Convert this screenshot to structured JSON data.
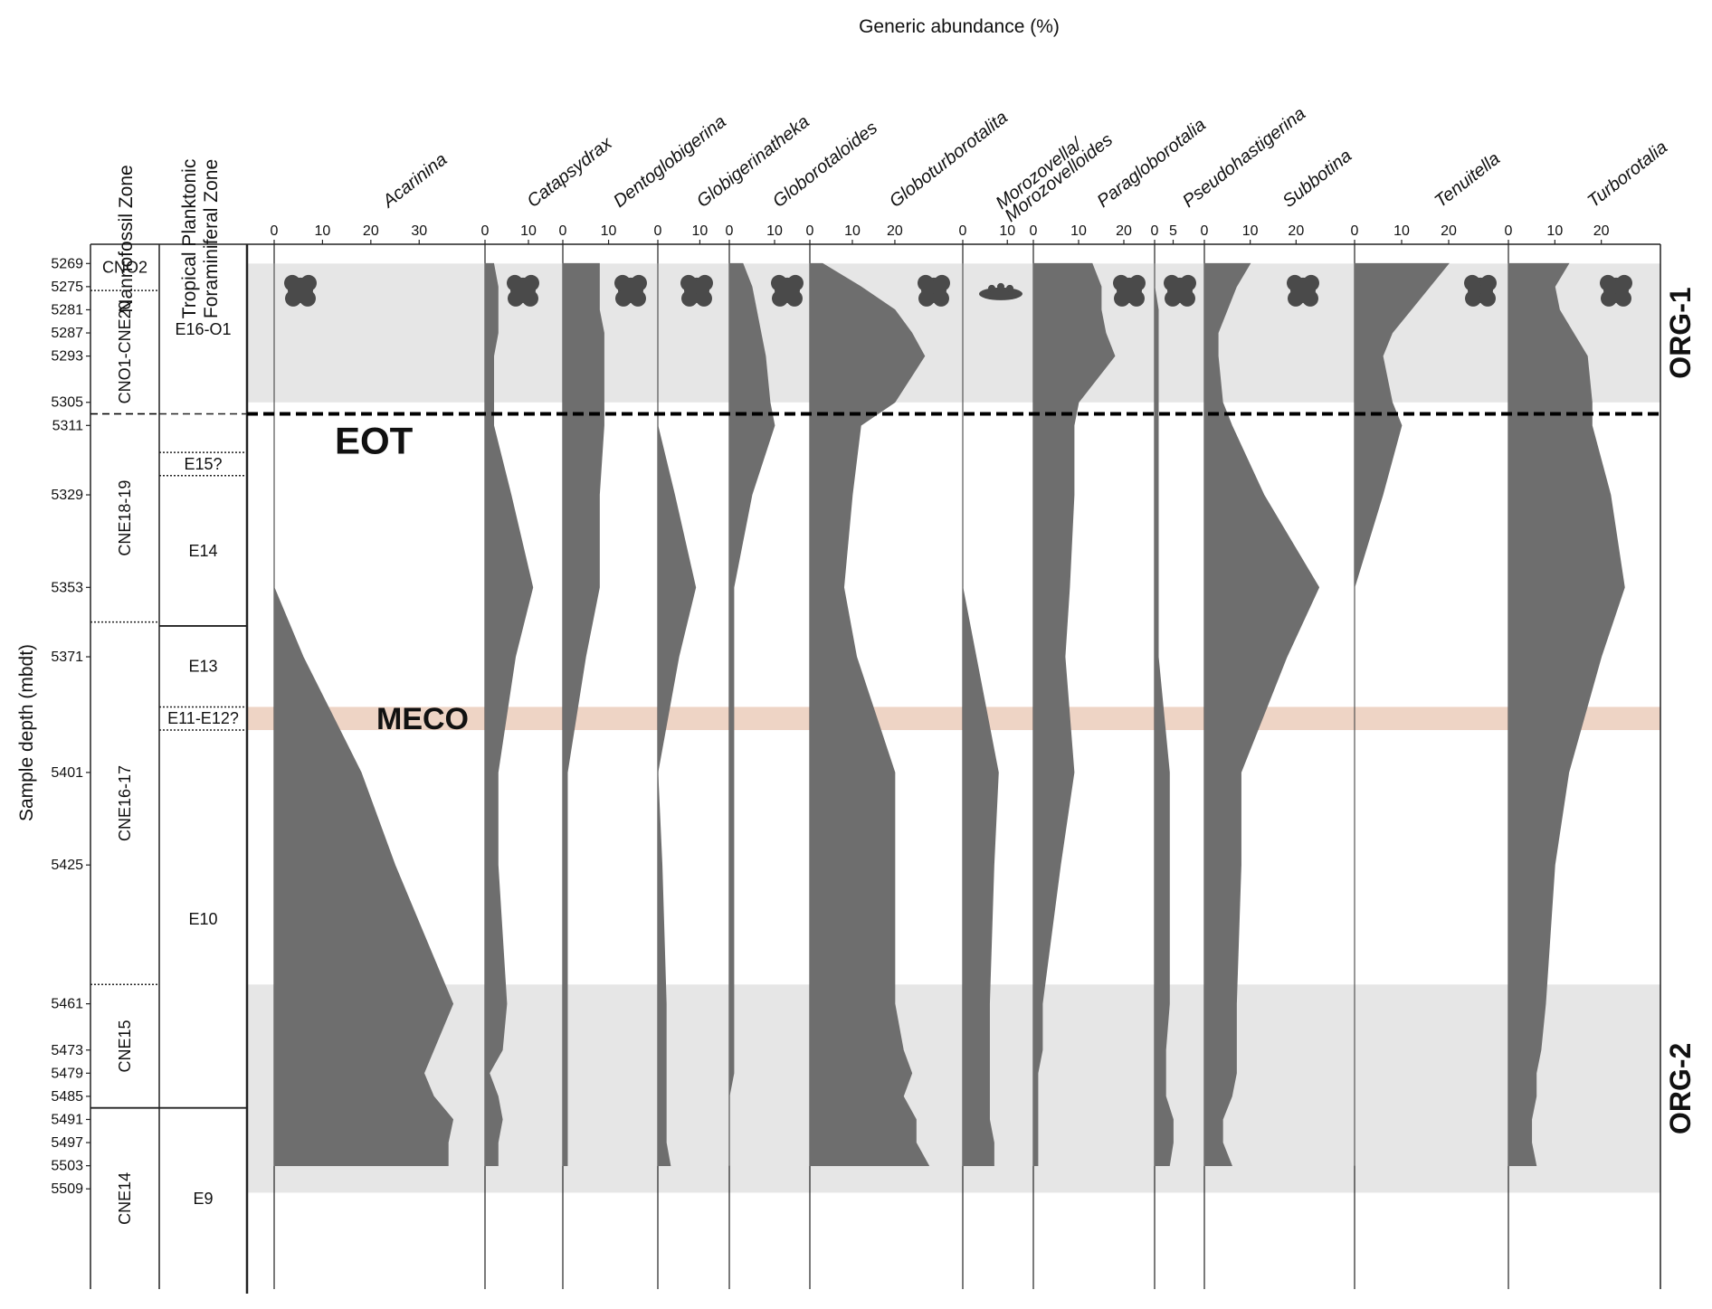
{
  "chart_data": {
    "type": "area",
    "title": "Generic abundance (%)",
    "ylabel": "Sample depth (mbdt)",
    "ylim": [
      5264,
      5535
    ],
    "depth_ticks": [
      5269,
      5275,
      5281,
      5287,
      5293,
      5305,
      5311,
      5329,
      5353,
      5371,
      5401,
      5425,
      5461,
      5473,
      5479,
      5485,
      5491,
      5497,
      5503,
      5509
    ],
    "zone_column_headers": [
      "Nannofossil Zone",
      "Tropical Planktonic Foraminiferal Zone"
    ],
    "nannofossil_zones": [
      {
        "label": "CNO2",
        "top": 5264,
        "bottom": 5276,
        "boundary": "dotted"
      },
      {
        "label": "CNO1-CNE20",
        "top": 5276,
        "bottom": 5308,
        "boundary": "dashed"
      },
      {
        "label": "CNE18-19",
        "top": 5308,
        "bottom": 5362,
        "boundary": "dotted"
      },
      {
        "label": "CNE16-17",
        "top": 5362,
        "bottom": 5456,
        "boundary": "dotted"
      },
      {
        "label": "CNE15",
        "top": 5456,
        "bottom": 5488,
        "boundary": "solid"
      },
      {
        "label": "CNE14",
        "top": 5488,
        "bottom": 5535,
        "boundary": "none"
      }
    ],
    "foram_zones": [
      {
        "label": "E16-O1",
        "top": 5264,
        "bottom": 5308,
        "boundary": "dashed"
      },
      {
        "label": "",
        "top": 5308,
        "bottom": 5318,
        "boundary": "dotted"
      },
      {
        "label": "E15?",
        "top": 5318,
        "bottom": 5324,
        "boundary": "dotted"
      },
      {
        "label": "E14",
        "top": 5324,
        "bottom": 5363,
        "boundary": "solid"
      },
      {
        "label": "E13",
        "top": 5363,
        "bottom": 5384,
        "boundary": "dotted"
      },
      {
        "label": "E11-E12?",
        "top": 5384,
        "bottom": 5390,
        "boundary": "dotted"
      },
      {
        "label": "E10",
        "top": 5390,
        "bottom": 5488,
        "boundary": "solid"
      },
      {
        "label": "E9",
        "top": 5488,
        "bottom": 5535,
        "boundary": "none"
      }
    ],
    "events": [
      {
        "label": "EOT",
        "depth": 5308,
        "style": "dashed-line"
      },
      {
        "label": "MECO",
        "top": 5384,
        "bottom": 5390,
        "color": "#eccfbf"
      }
    ],
    "intervals": [
      {
        "label": "ORG-1",
        "top": 5269,
        "bottom": 5305,
        "color": "#e6e6e6"
      },
      {
        "label": "ORG-2",
        "top": 5456,
        "bottom": 5510,
        "color": "#e6e6e6"
      }
    ],
    "colors": {
      "fill": "#6e6e6e",
      "fossil": "#4a4a4a"
    },
    "sample_depths": [
      5269,
      5275,
      5281,
      5287,
      5293,
      5305,
      5311,
      5329,
      5353,
      5371,
      5401,
      5425,
      5461,
      5473,
      5479,
      5485,
      5491,
      5497,
      5503
    ],
    "series": [
      {
        "name": "Acarinina",
        "ticks": [
          0,
          10,
          20,
          30
        ],
        "xmax": 41,
        "values": [
          0,
          0,
          0,
          0,
          0,
          0,
          0,
          0,
          0,
          6,
          18,
          25,
          37,
          33,
          31,
          33,
          37,
          36,
          36
        ]
      },
      {
        "name": "Catapsydrax",
        "ticks": [
          0,
          10
        ],
        "xmax": 15,
        "values": [
          2,
          3,
          3,
          3,
          2,
          2,
          2,
          6,
          11,
          7,
          3,
          3,
          5,
          4,
          1,
          3,
          4,
          3,
          3
        ]
      },
      {
        "name": "Dentoglobigerina",
        "ticks": [
          0,
          10
        ],
        "xmax": 18,
        "values": [
          8,
          8,
          8,
          9,
          9,
          9,
          9,
          8,
          8,
          5,
          1,
          1,
          1,
          1,
          1,
          1,
          1,
          1,
          1
        ]
      },
      {
        "name": "Globigerinatheka",
        "ticks": [
          0,
          10
        ],
        "xmax": 14,
        "values": [
          0,
          0,
          0,
          0,
          0,
          0,
          0,
          4,
          9,
          5,
          0,
          1,
          2,
          2,
          2,
          2,
          2,
          2,
          3
        ]
      },
      {
        "name": "Globorotaloides",
        "ticks": [
          0,
          10
        ],
        "xmax": 15,
        "values": [
          3,
          5,
          6,
          7,
          8,
          9,
          10,
          5,
          1,
          1,
          1,
          1,
          1,
          1,
          1,
          0,
          0,
          0,
          0
        ]
      },
      {
        "name": "Globoturborotalita",
        "ticks": [
          0,
          10,
          20
        ],
        "xmax": 33,
        "values": [
          3,
          12,
          20,
          24,
          27,
          20,
          12,
          10,
          8,
          11,
          20,
          20,
          20,
          22,
          24,
          22,
          25,
          25,
          28
        ]
      },
      {
        "name": "Morozovella/ Morozovelloides",
        "ticks": [
          0,
          10
        ],
        "xmax": 13,
        "values": [
          0,
          0,
          0,
          0,
          0,
          0,
          0,
          0,
          0,
          3,
          8,
          7,
          6,
          6,
          6,
          6,
          6,
          7,
          7
        ]
      },
      {
        "name": "Paragloborotalia",
        "ticks": [
          0,
          10,
          20
        ],
        "xmax": 24,
        "values": [
          13,
          15,
          15,
          16,
          18,
          10,
          9,
          9,
          8,
          7,
          9,
          6,
          2,
          2,
          1,
          1,
          1,
          1,
          1
        ]
      },
      {
        "name": "Pseudohastigerina",
        "ticks": [
          0,
          5
        ],
        "xmax": 10,
        "values": [
          0,
          0,
          1,
          1,
          1,
          1,
          1,
          1,
          1,
          1,
          4,
          4,
          4,
          3,
          3,
          3,
          5,
          5,
          4
        ]
      },
      {
        "name": "Subbotina",
        "ticks": [
          0,
          10,
          20
        ],
        "xmax": 30,
        "values": [
          10,
          7,
          5,
          3,
          3,
          4,
          6,
          13,
          25,
          18,
          8,
          8,
          7,
          7,
          7,
          6,
          4,
          4,
          6
        ]
      },
      {
        "name": "Tenuitella",
        "ticks": [
          0,
          10,
          20
        ],
        "xmax": 30,
        "values": [
          20,
          16,
          12,
          8,
          6,
          8,
          10,
          6,
          0,
          0,
          0,
          0,
          0,
          0,
          0,
          0,
          0,
          0,
          0
        ]
      },
      {
        "name": "Turborotalia",
        "ticks": [
          0,
          10,
          20
        ],
        "xmax": 30,
        "values": [
          13,
          10,
          11,
          14,
          17,
          18,
          18,
          22,
          25,
          20,
          13,
          10,
          8,
          7,
          6,
          6,
          5,
          5,
          6
        ]
      }
    ]
  }
}
